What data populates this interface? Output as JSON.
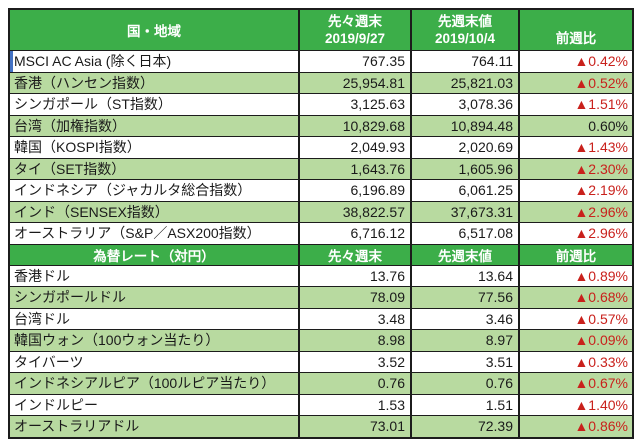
{
  "colors": {
    "header_green": "#3cae49",
    "row_light_green": "#b8daa0",
    "change_red": "#c9211c",
    "active_cell_blue": "#4472c4",
    "border": "#1c1c1c"
  },
  "indices_table": {
    "header": {
      "region": "国・地域",
      "prev_line1": "先々週末",
      "prev_line2": "2019/9/27",
      "last_line1": "先週末値",
      "last_line2": "2019/10/4",
      "change": "前週比"
    },
    "rows": [
      {
        "label": "MSCI AC Asia (除く日本)",
        "prev": "767.35",
        "last": "764.11",
        "change": "▲0.42%",
        "down": true
      },
      {
        "label": "香港（ハンセン指数）",
        "prev": "25,954.81",
        "last": "25,821.03",
        "change": "▲0.52%",
        "down": true
      },
      {
        "label": "シンガポール（ST指数）",
        "prev": "3,125.63",
        "last": "3,078.36",
        "change": "▲1.51%",
        "down": true
      },
      {
        "label": "台湾（加権指数）",
        "prev": "10,829.68",
        "last": "10,894.48",
        "change": "0.60%",
        "down": false
      },
      {
        "label": "韓国（KOSPI指数）",
        "prev": "2,049.93",
        "last": "2,020.69",
        "change": "▲1.43%",
        "down": true
      },
      {
        "label": "タイ（SET指数）",
        "prev": "1,643.76",
        "last": "1,605.96",
        "change": "▲2.30%",
        "down": true
      },
      {
        "label": "インドネシア（ジャカルタ総合指数）",
        "prev": "6,196.89",
        "last": "6,061.25",
        "change": "▲2.19%",
        "down": true
      },
      {
        "label": "インド（SENSEX指数）",
        "prev": "38,822.57",
        "last": "37,673.31",
        "change": "▲2.96%",
        "down": true
      },
      {
        "label": "オーストラリア（S&P／ASX200指数）",
        "prev": "6,716.12",
        "last": "6,517.08",
        "change": "▲2.96%",
        "down": true
      }
    ]
  },
  "fx_table": {
    "header": {
      "title": "為替レート（対円）",
      "prev": "先々週末",
      "last": "先週末値",
      "change": "前週比"
    },
    "rows": [
      {
        "label": "香港ドル",
        "prev": "13.76",
        "last": "13.64",
        "change": "▲0.89%",
        "down": true
      },
      {
        "label": "シンガポールドル",
        "prev": "78.09",
        "last": "77.56",
        "change": "▲0.68%",
        "down": true
      },
      {
        "label": "台湾ドル",
        "prev": "3.48",
        "last": "3.46",
        "change": "▲0.57%",
        "down": true
      },
      {
        "label": "韓国ウォン（100ウォン当たり）",
        "prev": "8.98",
        "last": "8.97",
        "change": "▲0.09%",
        "down": true
      },
      {
        "label": "タイバーツ",
        "prev": "3.52",
        "last": "3.51",
        "change": "▲0.33%",
        "down": true
      },
      {
        "label": "インドネシアルピア（100ルピア当たり）",
        "prev": "0.76",
        "last": "0.76",
        "change": "▲0.67%",
        "down": true
      },
      {
        "label": "インドルピー",
        "prev": "1.53",
        "last": "1.51",
        "change": "▲1.40%",
        "down": true
      },
      {
        "label": "オーストラリアドル",
        "prev": "73.01",
        "last": "72.39",
        "change": "▲0.86%",
        "down": true
      }
    ]
  }
}
